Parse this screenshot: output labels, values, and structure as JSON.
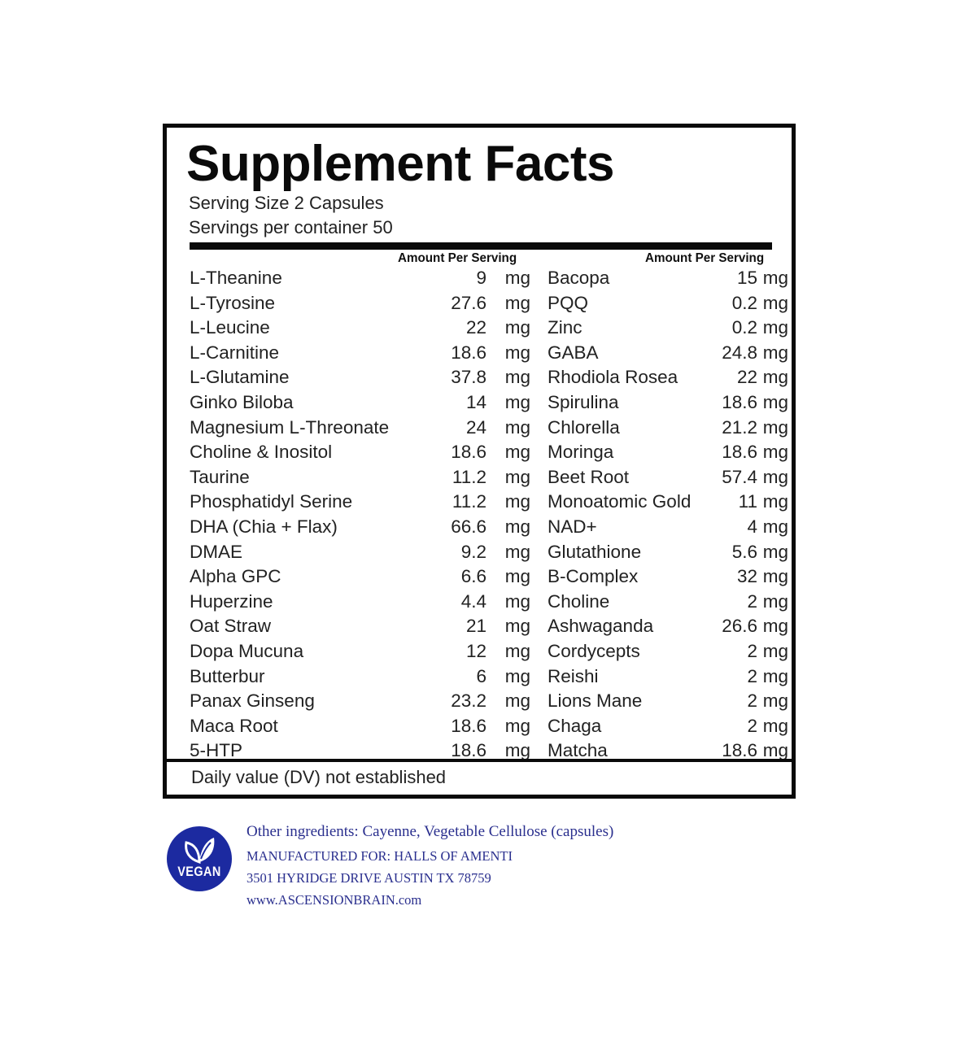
{
  "label": {
    "title": "Supplement Facts",
    "serving_size": "Serving Size 2 Capsules",
    "servings_per_container": "Servings per container 50",
    "amount_header_left": "Amount Per Serving",
    "amount_header_right": "Amount Per Serving",
    "left_ingredients": [
      {
        "name": "L-Theanine",
        "amount": "9",
        "unit": "mg"
      },
      {
        "name": "L-Tyrosine",
        "amount": "27.6",
        "unit": "mg"
      },
      {
        "name": "L-Leucine",
        "amount": "22",
        "unit": "mg"
      },
      {
        "name": "L-Carnitine",
        "amount": "18.6",
        "unit": "mg"
      },
      {
        "name": "L-Glutamine",
        "amount": "37.8",
        "unit": "mg"
      },
      {
        "name": "Ginko Biloba",
        "amount": "14",
        "unit": "mg"
      },
      {
        "name": "Magnesium L-Threonate",
        "amount": "24",
        "unit": "mg"
      },
      {
        "name": "Choline & Inositol",
        "amount": "18.6",
        "unit": "mg"
      },
      {
        "name": "Taurine",
        "amount": "11.2",
        "unit": "mg"
      },
      {
        "name": "Phosphatidyl Serine",
        "amount": "11.2",
        "unit": "mg"
      },
      {
        "name": "DHA (Chia + Flax)",
        "amount": "66.6",
        "unit": "mg"
      },
      {
        "name": "DMAE",
        "amount": "9.2",
        "unit": "mg"
      },
      {
        "name": "Alpha GPC",
        "amount": "6.6",
        "unit": "mg"
      },
      {
        "name": "Huperzine",
        "amount": "4.4",
        "unit": "mg"
      },
      {
        "name": "Oat Straw",
        "amount": "21",
        "unit": "mg"
      },
      {
        "name": "Dopa Mucuna",
        "amount": "12",
        "unit": "mg"
      },
      {
        "name": "Butterbur",
        "amount": "6",
        "unit": "mg"
      },
      {
        "name": "Panax Ginseng",
        "amount": "23.2",
        "unit": "mg"
      },
      {
        "name": "Maca Root",
        "amount": "18.6",
        "unit": "mg"
      },
      {
        "name": "5-HTP",
        "amount": "18.6",
        "unit": "mg"
      }
    ],
    "right_ingredients": [
      {
        "name": "Bacopa",
        "amount": "15",
        "unit": "mg"
      },
      {
        "name": "PQQ",
        "amount": "0.2",
        "unit": "mg"
      },
      {
        "name": "Zinc",
        "amount": "0.2",
        "unit": "mg"
      },
      {
        "name": "GABA",
        "amount": "24.8",
        "unit": "mg"
      },
      {
        "name": "Rhodiola Rosea",
        "amount": "22",
        "unit": "mg"
      },
      {
        "name": "Spirulina",
        "amount": "18.6",
        "unit": "mg"
      },
      {
        "name": "Chlorella",
        "amount": "21.2",
        "unit": "mg"
      },
      {
        "name": "Moringa",
        "amount": "18.6",
        "unit": "mg"
      },
      {
        "name": "Beet Root",
        "amount": "57.4",
        "unit": "mg"
      },
      {
        "name": "Monoatomic Gold",
        "amount": "11",
        "unit": "mg"
      },
      {
        "name": "NAD+",
        "amount": "4",
        "unit": "mg"
      },
      {
        "name": "Glutathione",
        "amount": "5.6",
        "unit": "mg"
      },
      {
        "name": "B-Complex",
        "amount": "32",
        "unit": "mg"
      },
      {
        "name": "Choline",
        "amount": "2",
        "unit": "mg"
      },
      {
        "name": "Ashwaganda",
        "amount": "26.6",
        "unit": "mg"
      },
      {
        "name": "Cordycepts",
        "amount": "2",
        "unit": "mg"
      },
      {
        "name": "Reishi",
        "amount": "2",
        "unit": "mg"
      },
      {
        "name": "Lions Mane",
        "amount": "2",
        "unit": "mg"
      },
      {
        "name": "Chaga",
        "amount": "2",
        "unit": "mg"
      },
      {
        "name": "Matcha",
        "amount": "18.6",
        "unit": "mg"
      }
    ],
    "daily_value_note": "Daily value (DV) not established"
  },
  "footer": {
    "badge_text": "VEGAN",
    "badge_icon": "leaf-icon",
    "badge_color": "#1c2aa0",
    "text_color": "#2a2f8e",
    "other_ingredients": "Other ingredients:   Cayenne, Vegetable  Cellulose (capsules)",
    "manufacturer": "MANUFACTURED FOR: HALLS OF AMENTI",
    "address": "3501 HYRIDGE DRIVE AUSTIN TX 78759",
    "website": "www.ASCENSIONBRAIN.com"
  }
}
